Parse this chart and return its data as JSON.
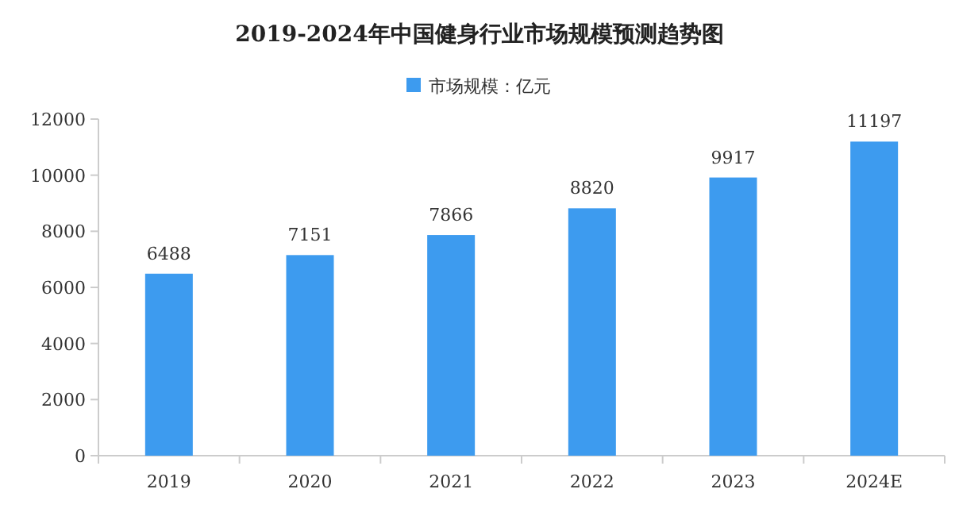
{
  "chart_data": {
    "type": "bar",
    "title": "2019-2024年中国健身行业市场规模预测趋势图",
    "categories": [
      "2019",
      "2020",
      "2021",
      "2022",
      "2023",
      "2024E"
    ],
    "series": [
      {
        "name": "市场规模：亿元",
        "color": "#3d9bef",
        "values": [
          6488,
          7151,
          7866,
          8820,
          9917,
          11197
        ]
      }
    ],
    "ylim": [
      0,
      12000
    ],
    "yticks": [
      0,
      2000,
      4000,
      6000,
      8000,
      10000,
      12000
    ],
    "data_labels": true,
    "grid": false,
    "legend": "top"
  }
}
